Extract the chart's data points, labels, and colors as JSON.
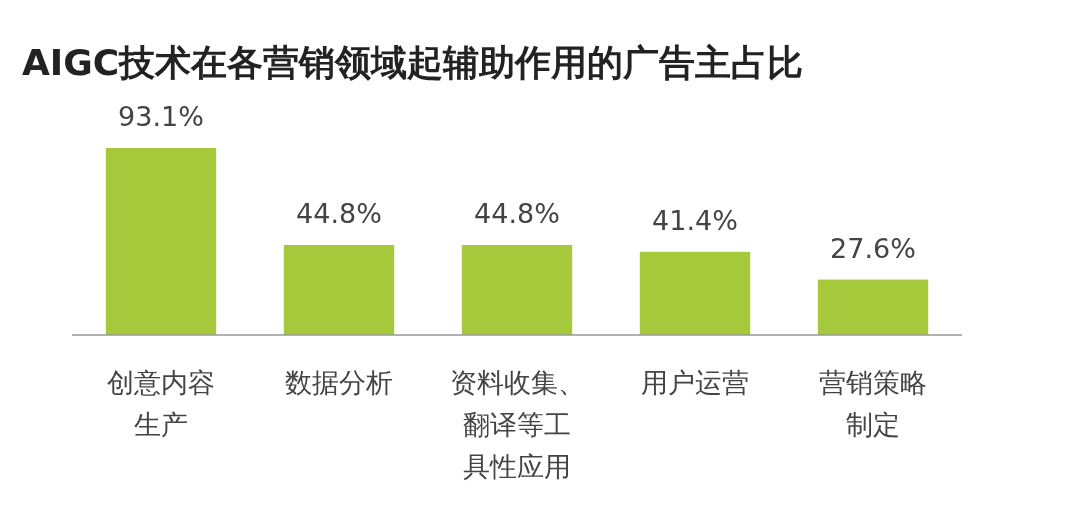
{
  "chart_data": {
    "type": "bar",
    "title": "AIGC技术在各营销领域起辅助作用的广告主占比",
    "categories": [
      "创意内容生产",
      "数据分析",
      "资料收集、翻译等工具性应用",
      "用户运营",
      "营销策略制定"
    ],
    "values": [
      93.1,
      44.8,
      44.8,
      41.4,
      27.6
    ],
    "value_labels": [
      "93.1%",
      "44.8%",
      "44.8%",
      "41.4%",
      "27.6%"
    ],
    "color": "#a5c93a"
  }
}
